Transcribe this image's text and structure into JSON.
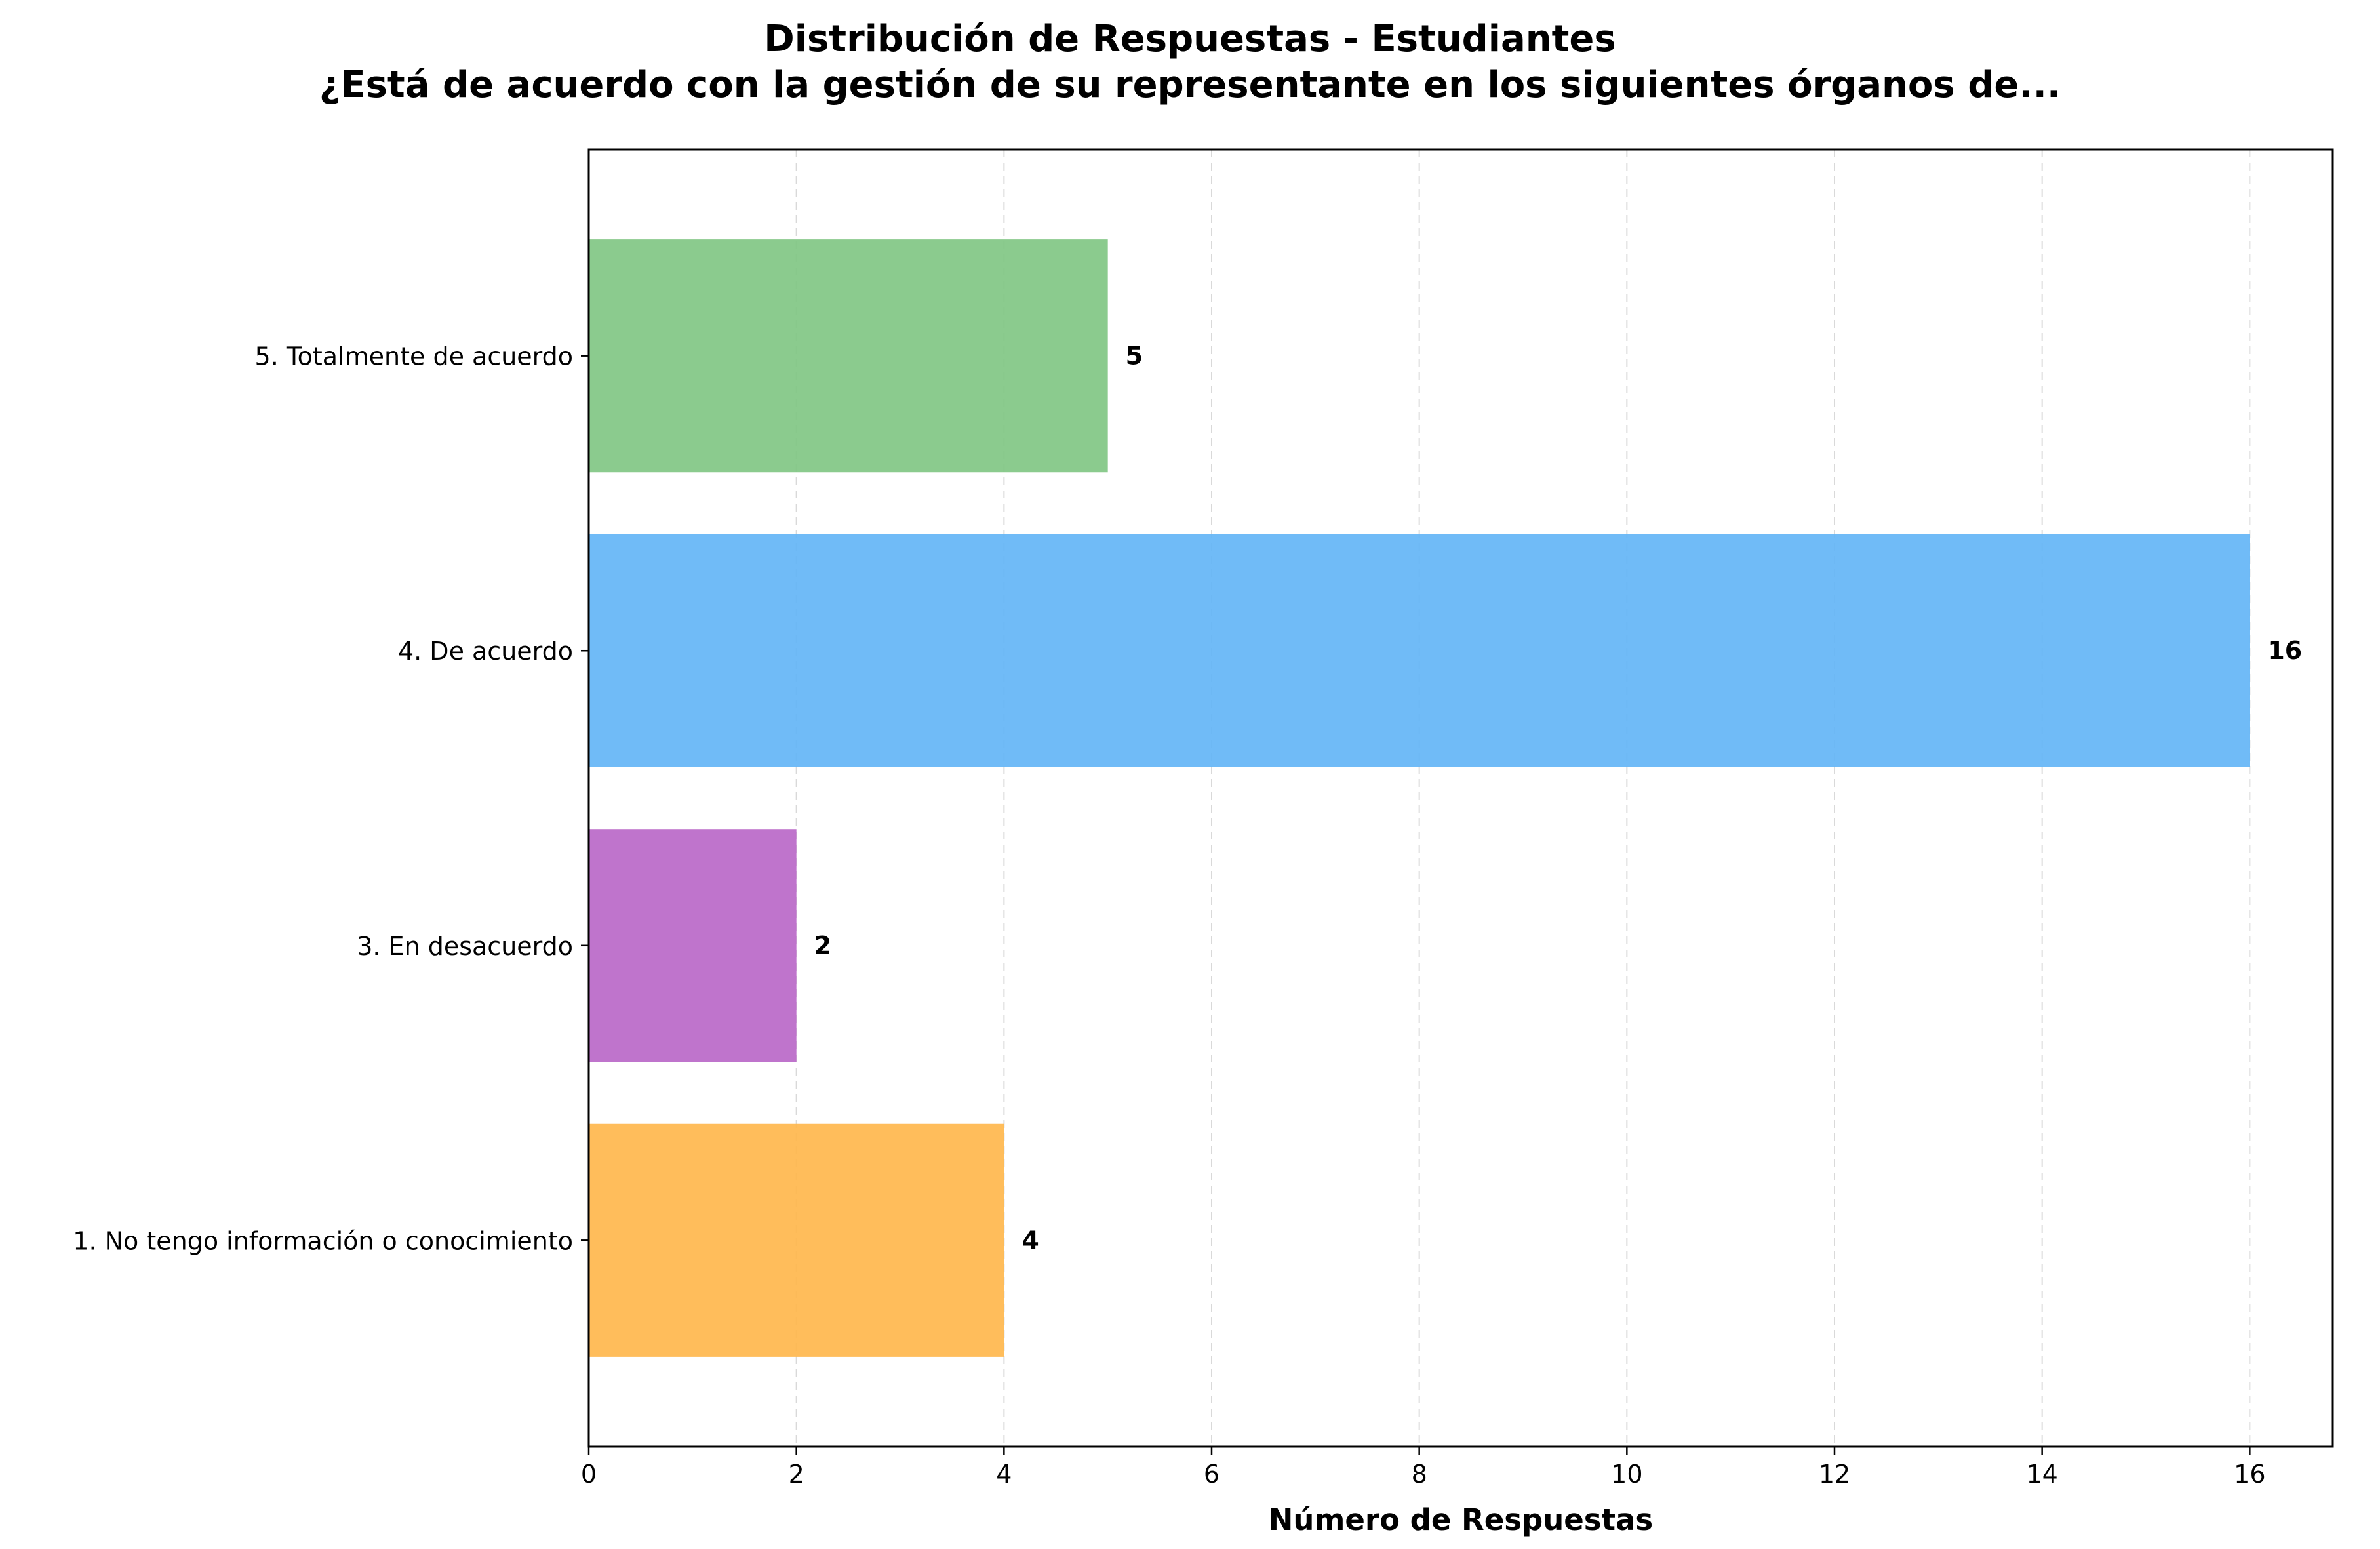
{
  "chart_data": {
    "type": "bar",
    "orientation": "horizontal",
    "title": "Distribución de Respuestas - Estudiantes",
    "subtitle": "¿Está de acuerdo con la gestión de su representante en los siguientes órganos de...",
    "xlabel": "Número de Respuestas",
    "ylabel": "",
    "xlim": [
      0,
      16.8
    ],
    "x_ticks": [
      0,
      2,
      4,
      6,
      8,
      10,
      12,
      14,
      16
    ],
    "grid": "x-dashed",
    "categories": [
      "1. No tengo información o conocimiento",
      "3. En desacuerdo",
      "4. De acuerdo",
      "5. Totalmente de acuerdo"
    ],
    "values": [
      4,
      2,
      16,
      5
    ],
    "colors": [
      "#FFB74D",
      "#BA68C8",
      "#64B5F6",
      "#81C784"
    ]
  }
}
